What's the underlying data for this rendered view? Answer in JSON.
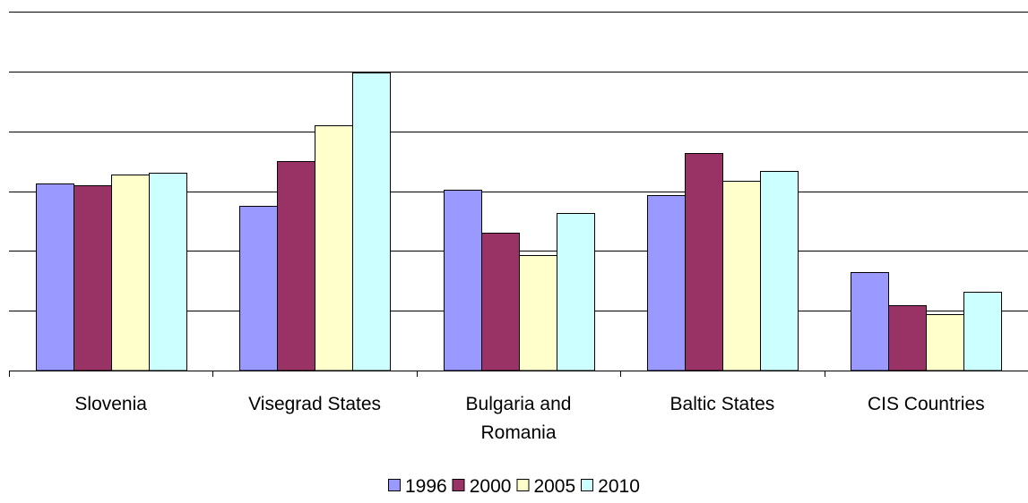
{
  "chart_data": {
    "type": "bar",
    "title": "",
    "xlabel": "",
    "ylabel": "",
    "ylim": [
      0,
      6
    ],
    "grid": true,
    "legend_position": "bottom",
    "categories": [
      [
        "Slovenia"
      ],
      [
        "Visegrad States"
      ],
      [
        "Bulgaria and",
        "Romania"
      ],
      [
        "Baltic States"
      ],
      [
        "CIS Countries"
      ]
    ],
    "series": [
      {
        "name": "1996",
        "color": "#9999ff",
        "values": [
          3.13,
          2.75,
          3.02,
          2.93,
          1.64
        ]
      },
      {
        "name": "2000",
        "color": "#993366",
        "values": [
          3.1,
          3.5,
          2.3,
          3.64,
          1.09
        ]
      },
      {
        "name": "2005",
        "color": "#ffffcc",
        "values": [
          3.28,
          4.1,
          1.93,
          3.17,
          0.95
        ]
      },
      {
        "name": "2010",
        "color": "#ccffff",
        "values": [
          3.3,
          4.98,
          2.64,
          3.34,
          1.32
        ]
      }
    ]
  }
}
